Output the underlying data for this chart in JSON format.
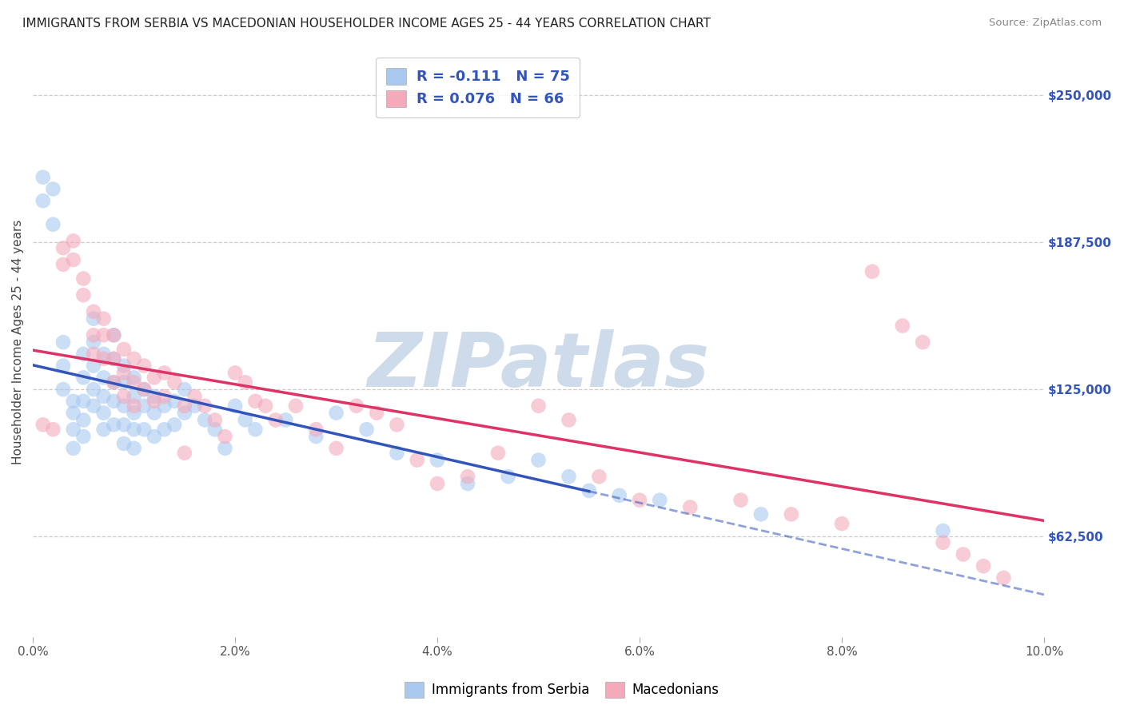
{
  "title": "IMMIGRANTS FROM SERBIA VS MACEDONIAN HOUSEHOLDER INCOME AGES 25 - 44 YEARS CORRELATION CHART",
  "source": "Source: ZipAtlas.com",
  "ylabel": "Householder Income Ages 25 - 44 years",
  "xlabel_ticks": [
    "0.0%",
    "2.0%",
    "4.0%",
    "6.0%",
    "8.0%",
    "10.0%"
  ],
  "xlabel_vals": [
    0.0,
    0.02,
    0.04,
    0.06,
    0.08,
    0.1
  ],
  "ylabel_ticks": [
    "$62,500",
    "$125,000",
    "$187,500",
    "$250,000"
  ],
  "ylabel_vals": [
    62500,
    125000,
    187500,
    250000
  ],
  "xmin": 0.0,
  "xmax": 0.1,
  "ymin": 20000,
  "ymax": 270000,
  "R_serbia": -0.111,
  "N_serbia": 75,
  "R_macedonian": 0.076,
  "N_macedonian": 66,
  "serbia_color": "#A8C8F0",
  "macedonia_color": "#F4AABB",
  "serbia_line_color": "#3355BB",
  "macedonia_line_color": "#DD3366",
  "serbia_line_solid_end": 0.055,
  "watermark": "ZIPatlas",
  "watermark_color": "#C8D8E8",
  "legend_text_color": "#3355BB",
  "serbia_scatter_x": [
    0.001,
    0.001,
    0.002,
    0.002,
    0.003,
    0.003,
    0.003,
    0.004,
    0.004,
    0.004,
    0.004,
    0.005,
    0.005,
    0.005,
    0.005,
    0.005,
    0.006,
    0.006,
    0.006,
    0.006,
    0.006,
    0.007,
    0.007,
    0.007,
    0.007,
    0.007,
    0.008,
    0.008,
    0.008,
    0.008,
    0.008,
    0.009,
    0.009,
    0.009,
    0.009,
    0.009,
    0.01,
    0.01,
    0.01,
    0.01,
    0.01,
    0.011,
    0.011,
    0.011,
    0.012,
    0.012,
    0.012,
    0.013,
    0.013,
    0.014,
    0.014,
    0.015,
    0.015,
    0.016,
    0.017,
    0.018,
    0.019,
    0.02,
    0.021,
    0.022,
    0.025,
    0.028,
    0.03,
    0.033,
    0.036,
    0.04,
    0.043,
    0.047,
    0.05,
    0.053,
    0.055,
    0.058,
    0.062,
    0.072,
    0.09
  ],
  "serbia_scatter_y": [
    215000,
    205000,
    210000,
    195000,
    145000,
    135000,
    125000,
    120000,
    115000,
    108000,
    100000,
    140000,
    130000,
    120000,
    112000,
    105000,
    155000,
    145000,
    135000,
    125000,
    118000,
    140000,
    130000,
    122000,
    115000,
    108000,
    148000,
    138000,
    128000,
    120000,
    110000,
    135000,
    128000,
    118000,
    110000,
    102000,
    130000,
    122000,
    115000,
    108000,
    100000,
    125000,
    118000,
    108000,
    122000,
    115000,
    105000,
    118000,
    108000,
    120000,
    110000,
    125000,
    115000,
    118000,
    112000,
    108000,
    100000,
    118000,
    112000,
    108000,
    112000,
    105000,
    115000,
    108000,
    98000,
    95000,
    85000,
    88000,
    95000,
    88000,
    82000,
    80000,
    78000,
    72000,
    65000
  ],
  "macedonia_scatter_x": [
    0.001,
    0.002,
    0.003,
    0.003,
    0.004,
    0.004,
    0.005,
    0.005,
    0.006,
    0.006,
    0.006,
    0.007,
    0.007,
    0.007,
    0.008,
    0.008,
    0.008,
    0.009,
    0.009,
    0.009,
    0.01,
    0.01,
    0.01,
    0.011,
    0.011,
    0.012,
    0.012,
    0.013,
    0.013,
    0.014,
    0.015,
    0.015,
    0.016,
    0.017,
    0.018,
    0.019,
    0.02,
    0.021,
    0.022,
    0.023,
    0.024,
    0.026,
    0.028,
    0.03,
    0.032,
    0.034,
    0.036,
    0.038,
    0.04,
    0.043,
    0.046,
    0.05,
    0.053,
    0.056,
    0.06,
    0.065,
    0.07,
    0.075,
    0.08,
    0.083,
    0.086,
    0.088,
    0.09,
    0.092,
    0.094,
    0.096
  ],
  "macedonia_scatter_y": [
    110000,
    108000,
    185000,
    178000,
    188000,
    180000,
    172000,
    165000,
    158000,
    148000,
    140000,
    155000,
    148000,
    138000,
    148000,
    138000,
    128000,
    142000,
    132000,
    122000,
    138000,
    128000,
    118000,
    135000,
    125000,
    130000,
    120000,
    132000,
    122000,
    128000,
    118000,
    98000,
    122000,
    118000,
    112000,
    105000,
    132000,
    128000,
    120000,
    118000,
    112000,
    118000,
    108000,
    100000,
    118000,
    115000,
    110000,
    95000,
    85000,
    88000,
    98000,
    118000,
    112000,
    88000,
    78000,
    75000,
    78000,
    72000,
    68000,
    175000,
    152000,
    145000,
    60000,
    55000,
    50000,
    45000
  ]
}
